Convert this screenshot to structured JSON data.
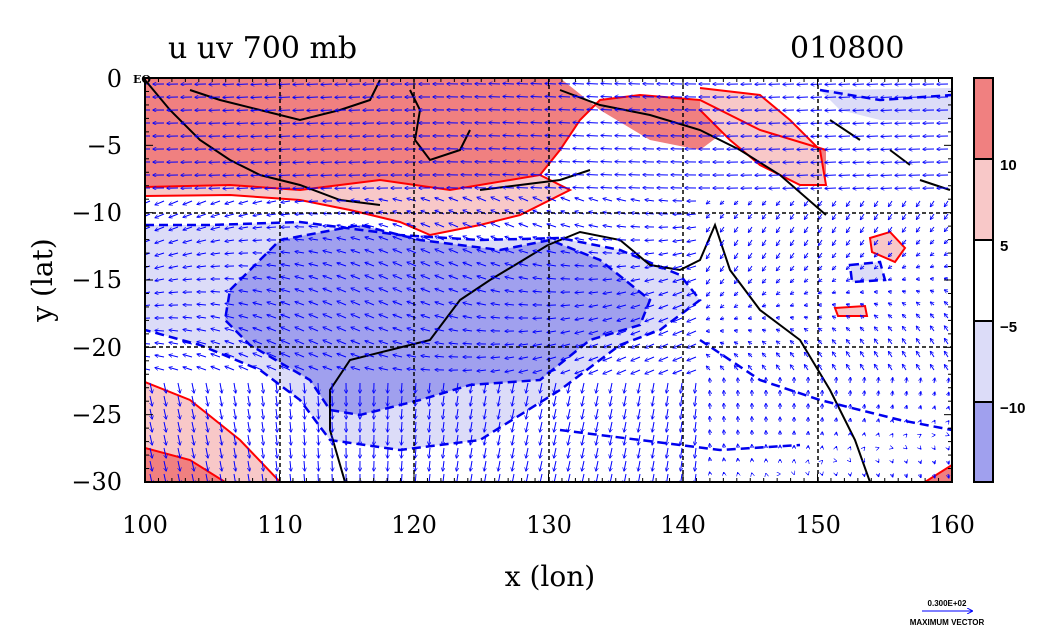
{
  "header": {
    "title_left": "u uv 700 mb",
    "title_right": "010800"
  },
  "axes": {
    "xlabel": "x (lon)",
    "ylabel": "y (lat)",
    "x_ticks": [
      "100",
      "110",
      "120",
      "130",
      "140",
      "150",
      "160"
    ],
    "y_ticks": [
      "0",
      "−5",
      "−10",
      "−15",
      "−20",
      "−25",
      "−30"
    ],
    "eq_label": "EQ"
  },
  "colorbar": {
    "labels": [
      "10",
      "5",
      "−5",
      "−10"
    ],
    "colors": [
      "#f08080",
      "#f8c8c8",
      "#ffffff",
      "#dcdcf8",
      "#a0a0ee"
    ]
  },
  "vector_key": {
    "value": "0.300E+02",
    "label": "MAXIMUM VECTOR"
  },
  "colors": {
    "positive_contour": "#ff0000",
    "negative_contour": "#0000ee",
    "vectors": "#0000ff",
    "coastline": "#000000"
  },
  "chart_data": {
    "type": "heatmap",
    "field": "u wind at 700 mb, filled contours with wind vectors",
    "x": "longitude",
    "y": "latitude",
    "xlim": [
      100,
      160
    ],
    "ylim": [
      -30,
      0
    ],
    "contour_levels": [
      -10,
      -5,
      5,
      10
    ],
    "grid": true
  }
}
